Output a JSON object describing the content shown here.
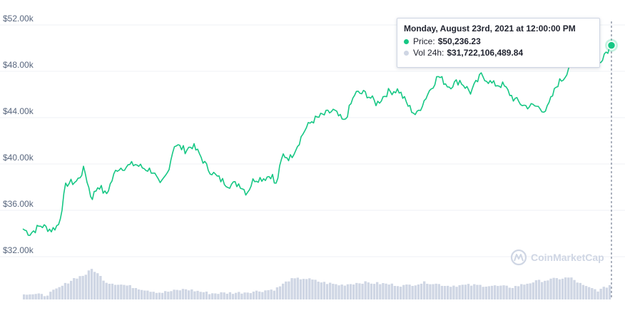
{
  "chart_data": {
    "type": "line",
    "y_ticks": [
      "$52.00k",
      "$48.00k",
      "$44.00k",
      "$40.00k",
      "$36.00k",
      "$32.00k"
    ],
    "y_tick_values": [
      52000,
      48000,
      44000,
      40000,
      36000,
      32000
    ],
    "ylim": [
      29200,
      53400
    ],
    "grid": true,
    "colors": {
      "price_line": "#16c784",
      "volume_bars": "#cfd6e4",
      "grid": "#eff2f5",
      "axis_text": "#58667e"
    },
    "price_keypoints": [
      [
        0,
        34400
      ],
      [
        2,
        34000
      ],
      [
        5,
        34700
      ],
      [
        8,
        34300
      ],
      [
        10,
        34800
      ],
      [
        12,
        38300
      ],
      [
        15,
        38500
      ],
      [
        17,
        39600
      ],
      [
        19,
        37000
      ],
      [
        21,
        38200
      ],
      [
        23,
        37300
      ],
      [
        26,
        39600
      ],
      [
        29,
        39800
      ],
      [
        31,
        40000
      ],
      [
        33,
        39700
      ],
      [
        36,
        39400
      ],
      [
        38,
        38100
      ],
      [
        40,
        39200
      ],
      [
        42,
        41700
      ],
      [
        45,
        41200
      ],
      [
        47,
        41600
      ],
      [
        49,
        40800
      ],
      [
        51,
        39700
      ],
      [
        54,
        38800
      ],
      [
        57,
        38200
      ],
      [
        60,
        38300
      ],
      [
        62,
        37500
      ],
      [
        64,
        38700
      ],
      [
        67,
        38800
      ],
      [
        69,
        39100
      ],
      [
        70,
        38000
      ],
      [
        72,
        40800
      ],
      [
        74,
        40500
      ],
      [
        76,
        41600
      ],
      [
        78,
        42900
      ],
      [
        80,
        43700
      ],
      [
        83,
        44200
      ],
      [
        86,
        44600
      ],
      [
        89,
        43600
      ],
      [
        92,
        46100
      ],
      [
        95,
        46100
      ],
      [
        98,
        45200
      ],
      [
        101,
        46200
      ],
      [
        104,
        46400
      ],
      [
        107,
        44900
      ],
      [
        109,
        44200
      ],
      [
        112,
        46000
      ],
      [
        115,
        47600
      ],
      [
        118,
        46700
      ],
      [
        121,
        47200
      ],
      [
        124,
        46200
      ],
      [
        127,
        47700
      ],
      [
        130,
        46900
      ],
      [
        133,
        46800
      ],
      [
        136,
        45600
      ],
      [
        139,
        45000
      ],
      [
        142,
        45000
      ],
      [
        145,
        44600
      ],
      [
        148,
        46900
      ],
      [
        150,
        47500
      ],
      [
        152,
        49000
      ],
      [
        155,
        49400
      ],
      [
        157,
        49000
      ],
      [
        159,
        48500
      ],
      [
        161,
        49500
      ],
      [
        163,
        50236
      ]
    ],
    "volume_keypoints": [
      [
        0,
        0.18
      ],
      [
        6,
        0.12
      ],
      [
        10,
        0.35
      ],
      [
        14,
        0.62
      ],
      [
        17,
        0.72
      ],
      [
        19,
        0.9
      ],
      [
        23,
        0.5
      ],
      [
        28,
        0.42
      ],
      [
        33,
        0.3
      ],
      [
        38,
        0.2
      ],
      [
        45,
        0.3
      ],
      [
        52,
        0.18
      ],
      [
        60,
        0.2
      ],
      [
        66,
        0.25
      ],
      [
        70,
        0.3
      ],
      [
        74,
        0.58
      ],
      [
        78,
        0.62
      ],
      [
        83,
        0.5
      ],
      [
        88,
        0.42
      ],
      [
        94,
        0.5
      ],
      [
        100,
        0.46
      ],
      [
        106,
        0.4
      ],
      [
        112,
        0.5
      ],
      [
        118,
        0.4
      ],
      [
        124,
        0.42
      ],
      [
        130,
        0.4
      ],
      [
        136,
        0.36
      ],
      [
        142,
        0.52
      ],
      [
        148,
        0.6
      ],
      [
        152,
        0.64
      ],
      [
        156,
        0.38
      ],
      [
        160,
        0.26
      ],
      [
        163,
        0.42
      ]
    ]
  },
  "tooltip": {
    "date": "Monday, August 23rd, 2021 at 12:00:00 PM",
    "price_label": "Price:",
    "price_value": "$50,236.23",
    "volume_label": "Vol 24h:",
    "volume_value": "$31,722,106,489.84",
    "price_dot_color": "#16c784",
    "volume_dot_color": "#cfd6e4"
  },
  "watermark": {
    "text": "CoinMarketCap"
  }
}
